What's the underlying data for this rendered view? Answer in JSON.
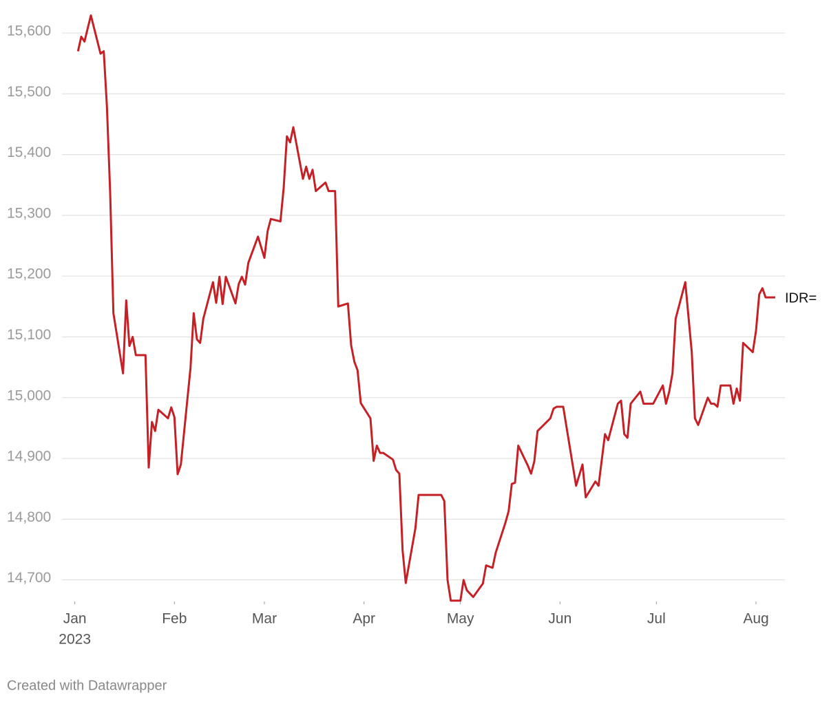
{
  "chart_data": {
    "type": "line",
    "xticks": [
      {
        "value": 0,
        "label": "Jan"
      },
      {
        "value": 31,
        "label": "Feb"
      },
      {
        "value": 59,
        "label": "Mar"
      },
      {
        "value": 90,
        "label": "Apr"
      },
      {
        "value": 120,
        "label": "May"
      },
      {
        "value": 151,
        "label": "Jun"
      },
      {
        "value": 181,
        "label": "Jul"
      },
      {
        "value": 212,
        "label": "Aug"
      }
    ],
    "year_label": "2023",
    "xlim": [
      -4,
      221
    ],
    "ylim": [
      14660,
      15630
    ],
    "yticks": [
      {
        "value": 14700,
        "label": "14,700"
      },
      {
        "value": 14800,
        "label": "14,800"
      },
      {
        "value": 14900,
        "label": "14,900"
      },
      {
        "value": 15000,
        "label": "15,000"
      },
      {
        "value": 15100,
        "label": "15,100"
      },
      {
        "value": 15200,
        "label": "15,200"
      },
      {
        "value": 15300,
        "label": "15,300"
      },
      {
        "value": 15400,
        "label": "15,400"
      },
      {
        "value": 15500,
        "label": "15,500"
      },
      {
        "value": 15600,
        "label": "15,600"
      }
    ],
    "grid": true,
    "x": [
      1,
      2,
      3,
      5,
      8,
      9,
      10,
      11,
      12,
      15,
      16,
      17,
      18,
      19,
      22,
      23,
      24,
      25,
      26,
      29,
      30,
      31,
      32,
      33,
      36,
      37,
      38,
      39,
      40,
      43,
      44,
      45,
      46,
      47,
      50,
      51,
      52,
      53,
      54,
      57,
      59,
      60,
      61,
      64,
      65,
      66,
      67,
      68,
      71,
      72,
      73,
      74,
      75,
      78,
      79,
      81,
      82,
      85,
      86,
      87,
      88,
      89,
      92,
      93,
      94,
      95,
      96,
      99,
      100,
      101,
      102,
      103,
      106,
      107,
      114,
      115,
      116,
      117,
      120,
      121,
      122,
      124,
      127,
      128,
      130,
      131,
      134,
      135,
      136,
      137,
      138,
      141,
      142,
      143,
      144,
      148,
      149,
      150,
      152,
      156,
      158,
      159,
      162,
      163,
      165,
      166,
      169,
      170,
      171,
      172,
      173,
      176,
      177,
      180,
      183,
      184,
      185,
      186,
      187,
      190,
      192,
      193,
      194,
      197,
      198,
      199,
      200,
      201,
      204,
      205,
      206,
      207,
      208,
      211,
      212,
      213,
      214,
      215,
      218
    ],
    "series": [
      {
        "name": "IDR=",
        "color": "#c42026",
        "values": [
          15570,
          15594,
          15586,
          15629,
          15566,
          15570,
          15479,
          15337,
          15139,
          15040,
          15160,
          15085,
          15100,
          15070,
          15070,
          14885,
          14960,
          14945,
          14980,
          14966,
          14984,
          14968,
          14874,
          14890,
          15049,
          15139,
          15096,
          15090,
          15130,
          15190,
          15156,
          15199,
          15154,
          15199,
          15155,
          15187,
          15199,
          15186,
          15222,
          15265,
          15230,
          15274,
          15294,
          15290,
          15345,
          15430,
          15420,
          15445,
          15360,
          15380,
          15360,
          15375,
          15340,
          15354,
          15340,
          15340,
          15150,
          15155,
          15086,
          15059,
          15045,
          14991,
          14966,
          14896,
          14921,
          14909,
          14909,
          14898,
          14881,
          14875,
          14749,
          14695,
          14785,
          14840,
          14840,
          14830,
          14700,
          14666,
          14666,
          14700,
          14683,
          14672,
          14694,
          14724,
          14720,
          14745,
          14794,
          14813,
          14858,
          14860,
          14921,
          14888,
          14875,
          14895,
          14945,
          14966,
          14982,
          14985,
          14985,
          14855,
          14890,
          14836,
          14862,
          14855,
          14940,
          14930,
          14990,
          14995,
          14940,
          14934,
          14990,
          15010,
          14990,
          14990,
          15020,
          14990,
          15010,
          15040,
          15130,
          15190,
          15075,
          14966,
          14955,
          15000,
          14990,
          14990,
          14985,
          15020,
          15020,
          14990,
          15015,
          14995,
          15090,
          15075,
          15110,
          15170,
          15180,
          15165,
          15165
        ]
      }
    ],
    "footer": "Created with Datawrapper"
  }
}
